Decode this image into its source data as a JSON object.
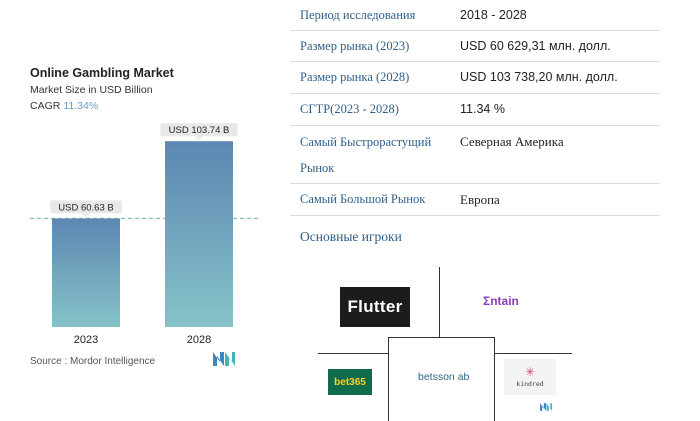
{
  "chart": {
    "title": "Online Gambling Market",
    "subtitle": "Market Size in USD Billion",
    "cagr_label": "CAGR",
    "cagr_value": "11.34%",
    "source": "Source : Mordor Intelligence"
  },
  "chart_data": {
    "type": "bar",
    "title": "Online Gambling Market",
    "subtitle": "Market Size in USD Billion",
    "categories": [
      "2023",
      "2028"
    ],
    "values": [
      60.63,
      103.74
    ],
    "data_labels": [
      "USD 60.63 B",
      "USD 103.74 B"
    ],
    "xlabel": "",
    "ylabel": "",
    "ylim": [
      0,
      110
    ],
    "grid": false,
    "reference_line": {
      "value": 60.63,
      "style": "dashed",
      "color": "#6fb5b7"
    },
    "colors": {
      "bar_top": "#5c87b2",
      "bar_bottom": "#86c3c8",
      "label_bg": "#e8e8e8"
    }
  },
  "info": {
    "rows": [
      {
        "label": "Период исследования",
        "value": "2018 - 2028"
      },
      {
        "label": "Размер рынка (2023)",
        "value": "USD 60 629,31 млн. долл."
      },
      {
        "label": "Размер рынка (2028)",
        "value": "USD 103 738,20 млн. долл."
      },
      {
        "label": "СГТР(2023 - 2028)",
        "value": "11.34 %"
      },
      {
        "label": "Самый Быстрорастущий Рынок",
        "value": "Северная Америка"
      },
      {
        "label": "Самый Большой Рынок",
        "value": "Европа"
      }
    ],
    "players_heading": "Основные игроки"
  },
  "players": {
    "flutter": "Flutter",
    "entain": "Σntain",
    "bet365": "bet365",
    "betsson": "betsson ab",
    "kindred_star": "✳",
    "kindred": "kindred"
  },
  "colors": {
    "accent": "#2f5f8a",
    "cagr": "#6a9cc8",
    "flutter_bg": "#1c1c1c",
    "bet365_bg": "#0e6b4c",
    "bet365_text": "#ffd21c",
    "entain": "#8b3fbf",
    "betsson": "#2d6a86"
  },
  "icons": {
    "brand": "mordor-logo-icon"
  }
}
